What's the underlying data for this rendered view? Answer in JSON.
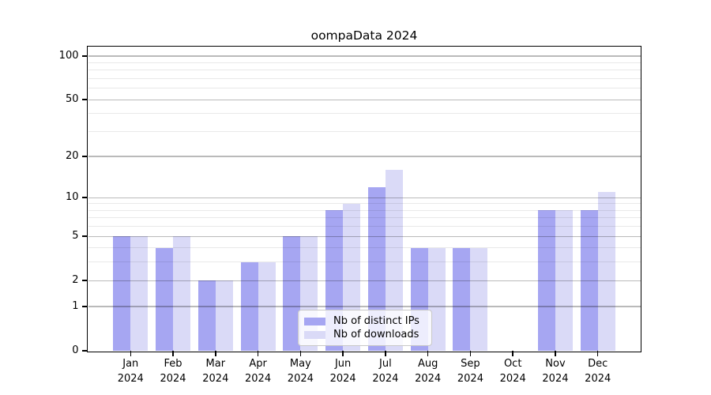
{
  "title": "oompaData 2024",
  "chart_data": {
    "type": "bar",
    "title": "oompaData 2024",
    "categories": [
      "Jan",
      "Feb",
      "Mar",
      "Apr",
      "May",
      "Jun",
      "Jul",
      "Aug",
      "Sep",
      "Oct",
      "Nov",
      "Dec"
    ],
    "category_year": "2024",
    "series": [
      {
        "key": "ips",
        "name": "Nb of distinct IPs",
        "color": "#a6a6f2",
        "values": [
          5,
          4,
          2,
          3,
          5,
          8,
          12,
          4,
          4,
          0,
          8,
          8
        ]
      },
      {
        "key": "downloads",
        "name": "Nb of downloads",
        "color": "#dadaf7",
        "values": [
          5,
          5,
          2,
          3,
          5,
          9,
          16,
          4,
          4,
          0,
          8,
          11
        ]
      }
    ],
    "y_scale": "log1p",
    "y_ticks": [
      0,
      1,
      2,
      5,
      10,
      20,
      50,
      100
    ],
    "y_minor_gridlines": [
      3,
      4,
      6,
      7,
      8,
      9,
      30,
      40,
      60,
      70,
      80,
      90
    ],
    "ylim": [
      0,
      115
    ],
    "xlabel": "",
    "ylabel": "",
    "grid": "horizontal",
    "grid_above_bars": true,
    "legend_position": "lower center",
    "background": "#ffffff",
    "axis_color": "#000000",
    "major_grid_color": "rgba(0,0,0,0.27)",
    "minor_grid_color": "rgba(0,0,0,0.085)"
  }
}
